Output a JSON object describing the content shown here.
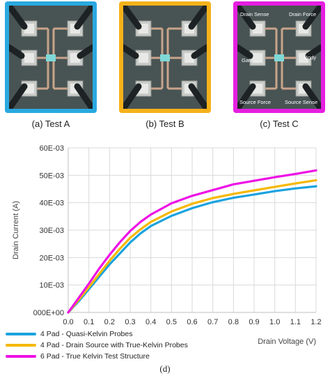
{
  "panels": [
    {
      "caption": "(a) Test A",
      "border": "#29a9e0",
      "labels": []
    },
    {
      "caption": "(b) Test B",
      "border": "#f5b21a",
      "labels": []
    },
    {
      "caption": "(c) Test C",
      "border": "#e51fe0",
      "labels": [
        "Drain Sense",
        "Drain Force",
        "Gate",
        "Body",
        "Source Force",
        "Source Sense"
      ]
    }
  ],
  "figure_caption": "(d)",
  "chart_data": {
    "type": "line",
    "xlabel": "Drain Voltage (V)",
    "ylabel": "Drain Current (A)",
    "xlim": [
      0.0,
      1.2
    ],
    "ylim": [
      0,
      0.06
    ],
    "x_ticks": [
      "0.0",
      "0.1",
      "0.2",
      "0.3",
      "0.4",
      "0.5",
      "0.6",
      "0.7",
      "0.8",
      "0.9",
      "1.0",
      "1.1",
      "1.2"
    ],
    "y_ticks": [
      "000E+00",
      "10E-03",
      "20E-03",
      "30E-03",
      "40E-03",
      "50E-03",
      "60E-03"
    ],
    "grid": true,
    "legend_position": "bottom-left",
    "x": [
      0.0,
      0.05,
      0.1,
      0.15,
      0.2,
      0.25,
      0.3,
      0.35,
      0.4,
      0.5,
      0.6,
      0.7,
      0.8,
      0.9,
      1.0,
      1.1,
      1.2
    ],
    "series": [
      {
        "name": "4 Pad - Quasi-Kelvin Probes",
        "color": "#1aa3e0",
        "values": [
          0.0,
          0.004,
          0.0085,
          0.013,
          0.0175,
          0.0215,
          0.0255,
          0.0288,
          0.0315,
          0.0352,
          0.038,
          0.0402,
          0.0418,
          0.043,
          0.0442,
          0.0452,
          0.046
        ]
      },
      {
        "name": "4 Pad - Drain Source with True-Kelvin Probes",
        "color": "#f5b800",
        "values": [
          0.0,
          0.0045,
          0.0092,
          0.014,
          0.0188,
          0.0232,
          0.0272,
          0.0303,
          0.033,
          0.0368,
          0.0396,
          0.0417,
          0.0432,
          0.0445,
          0.0458,
          0.047,
          0.0482
        ]
      },
      {
        "name": "6 Pad - True Kelvin Test Structure",
        "color": "#ee10e6",
        "values": [
          0.0,
          0.0052,
          0.0105,
          0.016,
          0.021,
          0.0256,
          0.0297,
          0.033,
          0.0357,
          0.0398,
          0.0425,
          0.0446,
          0.0467,
          0.048,
          0.0493,
          0.0505,
          0.0518
        ]
      }
    ]
  }
}
